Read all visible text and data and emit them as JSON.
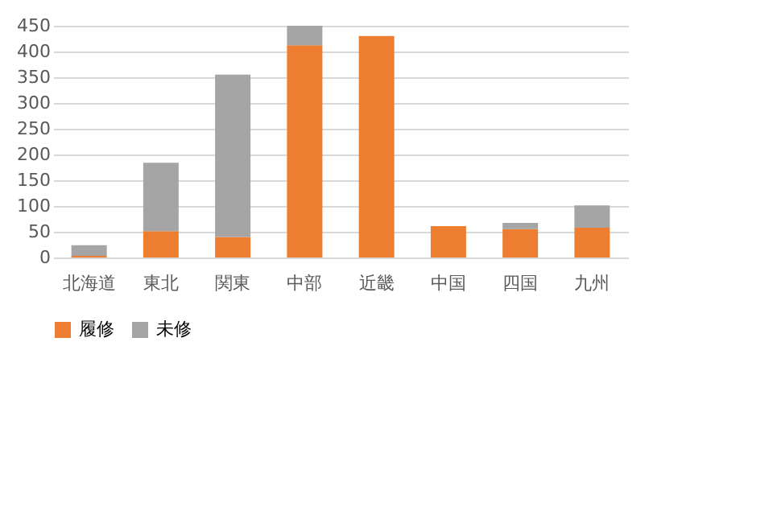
{
  "chart_data": {
    "type": "bar",
    "stacked": true,
    "categories": [
      "北海道",
      "東北",
      "関東",
      "中部",
      "近畿",
      "中国",
      "四国",
      "九州"
    ],
    "series": [
      {
        "name": "履修",
        "color": "#ed7d31",
        "values": [
          3,
          51,
          40,
          412,
          430,
          61,
          55,
          58
        ]
      },
      {
        "name": "未修",
        "color": "#a5a5a5",
        "values": [
          21,
          133,
          315,
          38,
          0,
          0,
          12,
          43
        ]
      }
    ],
    "ylim": [
      0,
      450
    ],
    "yticks": [
      0,
      50,
      100,
      150,
      200,
      250,
      300,
      350,
      400,
      450
    ],
    "grid": "y",
    "legend": "bottom"
  }
}
